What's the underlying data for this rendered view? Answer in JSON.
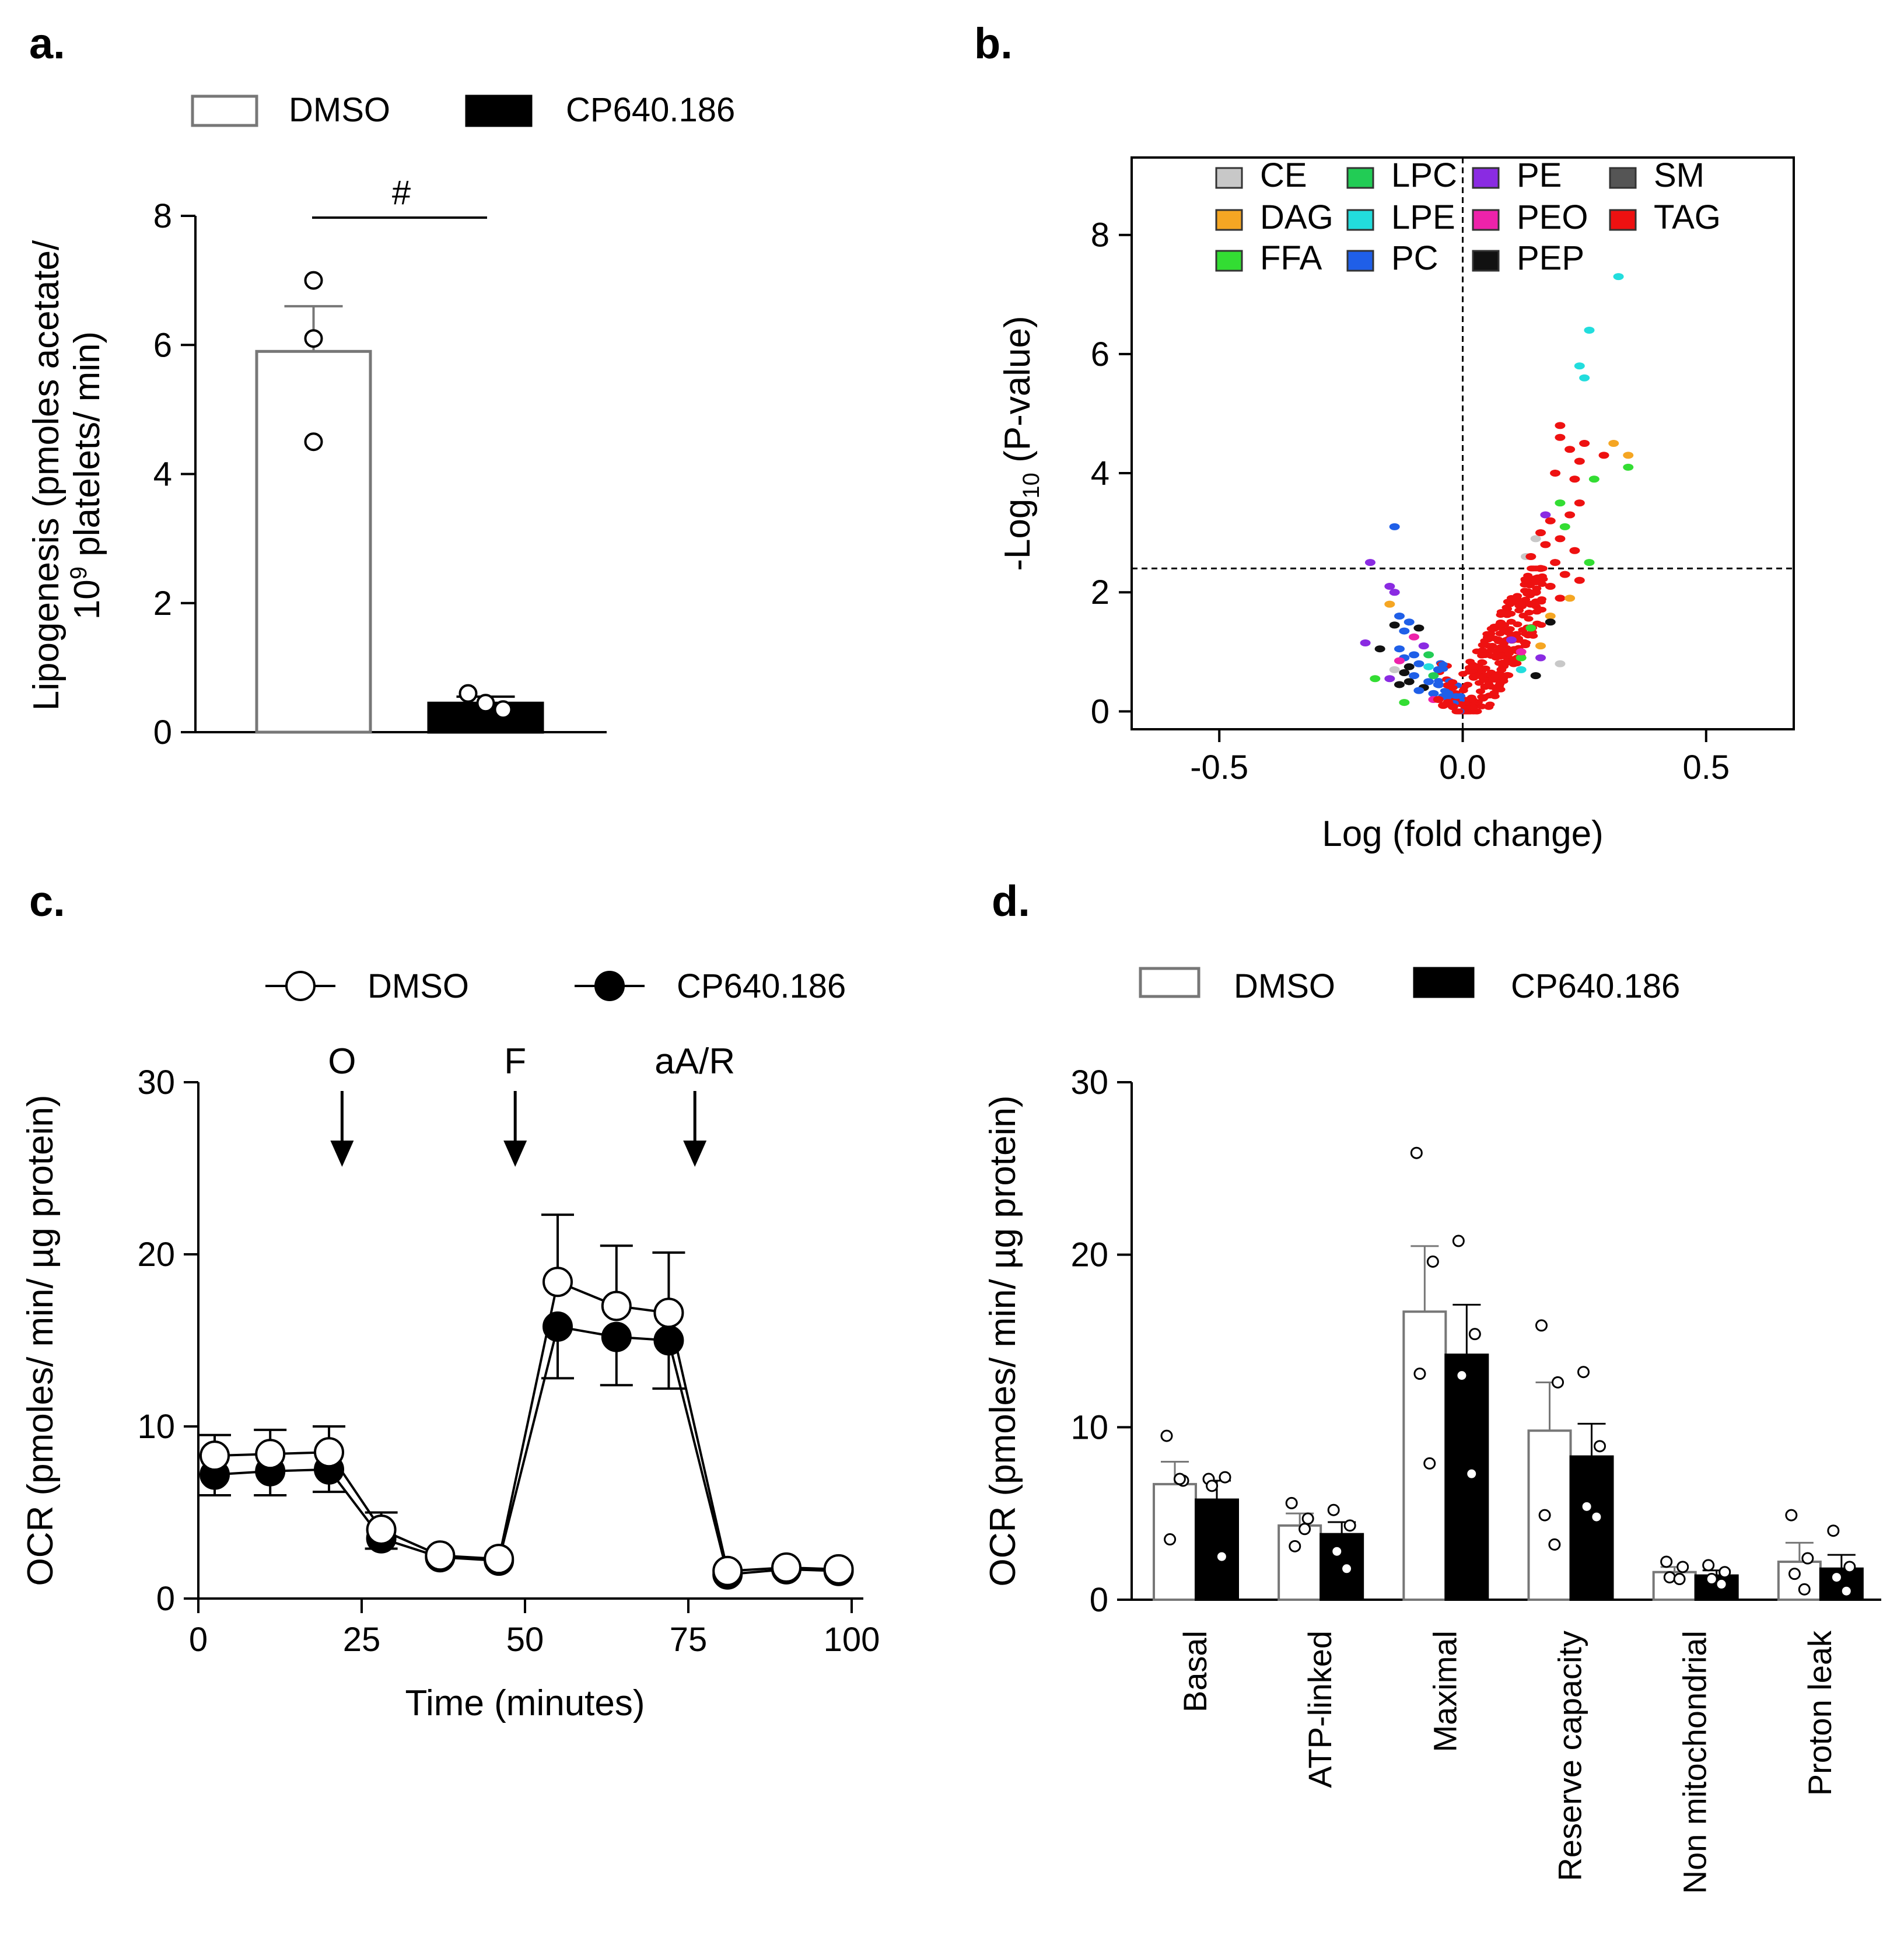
{
  "panels": {
    "a": {
      "label": "a.",
      "significance": "#"
    },
    "b": {
      "label": "b."
    },
    "c": {
      "label": "c.",
      "arrow_labels": [
        "O",
        "F",
        "aA/R"
      ],
      "arrow_x": [
        22,
        48.5,
        76
      ]
    },
    "d": {
      "label": "d."
    }
  },
  "colors": {
    "DMSO_fill": "#ffffff",
    "CP_fill": "#000000",
    "CE": "#c8c8c8",
    "DAG": "#f5a623",
    "FFA": "#33dd33",
    "LPC": "#22cc55",
    "LPE": "#22dddd",
    "PC": "#1f5fe8",
    "PE": "#8a2be2",
    "PEO": "#ee22aa",
    "PEP": "#111111",
    "SM": "#555555",
    "TAG": "#ee1111"
  },
  "chart_data": [
    {
      "type": "bar",
      "panel": "a",
      "ylabel_line1": "Lipogenesis (pmoles acetate/",
      "ylabel_line2_prefix": "10",
      "ylabel_line2_sup": "9",
      "ylabel_line2_suffix": " platelets/ min)",
      "ylim": [
        0,
        8
      ],
      "yticks": [
        "0",
        "2",
        "4",
        "6",
        "8"
      ],
      "series": [
        {
          "name": "DMSO",
          "value": 5.9,
          "sem": 0.7,
          "points": [
            7.0,
            6.1,
            4.5
          ]
        },
        {
          "name": "CP640.186",
          "value": 0.45,
          "sem": 0.1,
          "points": [
            0.6,
            0.45,
            0.35
          ]
        }
      ],
      "legend": [
        "DMSO",
        "CP640.186"
      ],
      "significance": "#"
    },
    {
      "type": "scatter",
      "panel": "b",
      "xlabel": "Log (fold change)",
      "ylabel_prefix": "-Log",
      "ylabel_sub": "10",
      "ylabel_suffix": " (P-value)",
      "xlim": [
        -0.68,
        0.68
      ],
      "ylim": [
        -0.3,
        9.3
      ],
      "xticks": [
        "-0.5",
        "0.0",
        "0.5"
      ],
      "yticks": [
        "0",
        "2",
        "4",
        "6",
        "8"
      ],
      "threshold_y": 2.4,
      "legend": [
        "CE",
        "LPC",
        "PE",
        "SM",
        "DAG",
        "LPE",
        "PEO",
        "TAG",
        "FFA",
        "PC",
        "PEP"
      ],
      "points": [
        {
          "class": "LPE",
          "x": 0.32,
          "y": 7.3
        },
        {
          "class": "LPE",
          "x": 0.26,
          "y": 6.4
        },
        {
          "class": "LPE",
          "x": 0.24,
          "y": 5.8
        },
        {
          "class": "LPE",
          "x": 0.25,
          "y": 5.6
        },
        {
          "class": "TAG",
          "x": 0.2,
          "y": 4.8
        },
        {
          "class": "TAG",
          "x": 0.2,
          "y": 4.6
        },
        {
          "class": "TAG",
          "x": 0.22,
          "y": 4.4
        },
        {
          "class": "TAG",
          "x": 0.25,
          "y": 4.5
        },
        {
          "class": "TAG",
          "x": 0.29,
          "y": 4.3
        },
        {
          "class": "TAG",
          "x": 0.24,
          "y": 4.2
        },
        {
          "class": "TAG",
          "x": 0.19,
          "y": 4.0
        },
        {
          "class": "TAG",
          "x": 0.23,
          "y": 3.9
        },
        {
          "class": "DAG",
          "x": 0.31,
          "y": 4.5
        },
        {
          "class": "DAG",
          "x": 0.34,
          "y": 4.3
        },
        {
          "class": "FFA",
          "x": 0.34,
          "y": 4.1
        },
        {
          "class": "FFA",
          "x": 0.27,
          "y": 3.9
        },
        {
          "class": "FFA",
          "x": 0.2,
          "y": 3.5
        },
        {
          "class": "FFA",
          "x": 0.21,
          "y": 3.1
        },
        {
          "class": "FFA",
          "x": 0.26,
          "y": 2.5
        },
        {
          "class": "CE",
          "x": 0.15,
          "y": 2.9
        },
        {
          "class": "CE",
          "x": 0.13,
          "y": 2.6
        },
        {
          "class": "PE",
          "x": 0.17,
          "y": 3.3
        },
        {
          "class": "TAG",
          "x": 0.24,
          "y": 3.5
        },
        {
          "class": "TAG",
          "x": 0.22,
          "y": 3.3
        },
        {
          "class": "TAG",
          "x": 0.18,
          "y": 3.2
        },
        {
          "class": "TAG",
          "x": 0.16,
          "y": 3.0
        },
        {
          "class": "TAG",
          "x": 0.2,
          "y": 2.9
        },
        {
          "class": "TAG",
          "x": 0.17,
          "y": 2.8
        },
        {
          "class": "TAG",
          "x": 0.23,
          "y": 2.7
        },
        {
          "class": "TAG",
          "x": 0.14,
          "y": 2.6
        },
        {
          "class": "TAG",
          "x": 0.19,
          "y": 2.5
        },
        {
          "class": "TAG",
          "x": 0.16,
          "y": 2.4
        },
        {
          "class": "TAG",
          "x": 0.21,
          "y": 2.3
        },
        {
          "class": "TAG",
          "x": 0.13,
          "y": 2.2
        },
        {
          "class": "TAG",
          "x": 0.18,
          "y": 2.1
        },
        {
          "class": "TAG",
          "x": 0.24,
          "y": 2.2
        },
        {
          "class": "TAG",
          "x": 0.15,
          "y": 2.0
        },
        {
          "class": "TAG",
          "x": 0.2,
          "y": 1.9
        },
        {
          "class": "TAG",
          "x": 0.11,
          "y": 1.9
        },
        {
          "class": "TAG",
          "x": 0.14,
          "y": 1.8
        },
        {
          "class": "DAG",
          "x": 0.22,
          "y": 1.9
        },
        {
          "class": "DAG",
          "x": 0.18,
          "y": 1.6
        },
        {
          "class": "DAG",
          "x": 0.16,
          "y": 1.1
        },
        {
          "class": "FFA",
          "x": 0.14,
          "y": 1.4
        },
        {
          "class": "FFA",
          "x": 0.12,
          "y": 0.9
        },
        {
          "class": "PEP",
          "x": 0.18,
          "y": 1.5
        },
        {
          "class": "PEP",
          "x": 0.15,
          "y": 0.6
        },
        {
          "class": "PE",
          "x": 0.1,
          "y": 1.2
        },
        {
          "class": "PE",
          "x": 0.16,
          "y": 0.9
        },
        {
          "class": "PEO",
          "x": 0.12,
          "y": 1.0
        },
        {
          "class": "CE",
          "x": 0.2,
          "y": 0.8
        },
        {
          "class": "LPE",
          "x": 0.12,
          "y": 0.7
        },
        {
          "class": "PC",
          "x": -0.14,
          "y": 3.1
        },
        {
          "class": "PE",
          "x": -0.19,
          "y": 2.5
        },
        {
          "class": "PE",
          "x": -0.15,
          "y": 2.1
        },
        {
          "class": "PE",
          "x": -0.14,
          "y": 2.0
        },
        {
          "class": "DAG",
          "x": -0.15,
          "y": 1.8
        },
        {
          "class": "PC",
          "x": -0.13,
          "y": 1.6
        },
        {
          "class": "PC",
          "x": -0.11,
          "y": 1.5
        },
        {
          "class": "PEP",
          "x": -0.14,
          "y": 1.45
        },
        {
          "class": "PC",
          "x": -0.12,
          "y": 1.35
        },
        {
          "class": "PEP",
          "x": -0.09,
          "y": 1.4
        },
        {
          "class": "PEO",
          "x": -0.1,
          "y": 1.25
        },
        {
          "class": "PE",
          "x": -0.2,
          "y": 1.15
        },
        {
          "class": "PEP",
          "x": -0.17,
          "y": 1.05
        },
        {
          "class": "PC",
          "x": -0.13,
          "y": 1.05
        },
        {
          "class": "PC",
          "x": -0.1,
          "y": 0.95
        },
        {
          "class": "PC",
          "x": -0.12,
          "y": 0.9
        },
        {
          "class": "PE",
          "x": -0.08,
          "y": 1.1
        },
        {
          "class": "LPC",
          "x": -0.07,
          "y": 0.95
        },
        {
          "class": "PEO",
          "x": -0.13,
          "y": 0.85
        },
        {
          "class": "PC",
          "x": -0.09,
          "y": 0.8
        },
        {
          "class": "PEP",
          "x": -0.11,
          "y": 0.75
        },
        {
          "class": "LPE",
          "x": -0.07,
          "y": 0.75
        },
        {
          "class": "PC",
          "x": -0.05,
          "y": 0.7
        },
        {
          "class": "PEP",
          "x": -0.12,
          "y": 0.65
        },
        {
          "class": "PC",
          "x": -0.1,
          "y": 0.6
        },
        {
          "class": "CE",
          "x": -0.14,
          "y": 0.7
        },
        {
          "class": "PE",
          "x": -0.15,
          "y": 0.55
        },
        {
          "class": "FFA",
          "x": -0.18,
          "y": 0.55
        },
        {
          "class": "PEP",
          "x": -0.11,
          "y": 0.5
        },
        {
          "class": "PEP",
          "x": -0.13,
          "y": 0.45
        },
        {
          "class": "PEP",
          "x": -0.08,
          "y": 0.4
        },
        {
          "class": "PC",
          "x": -0.07,
          "y": 0.5
        },
        {
          "class": "PC",
          "x": -0.05,
          "y": 0.45
        },
        {
          "class": "PC",
          "x": -0.09,
          "y": 0.35
        },
        {
          "class": "PC",
          "x": -0.06,
          "y": 0.3
        },
        {
          "class": "PC",
          "x": -0.04,
          "y": 0.25
        },
        {
          "class": "LPC",
          "x": -0.06,
          "y": 0.6
        },
        {
          "class": "FFA",
          "x": -0.12,
          "y": 0.15
        },
        {
          "class": "PEO",
          "x": -0.06,
          "y": 0.2
        },
        {
          "class": "TAG",
          "x": -0.05,
          "y": 0.2
        },
        {
          "class": "TAG",
          "x": -0.03,
          "y": 0.15
        },
        {
          "class": "TAG",
          "x": -0.02,
          "y": 0.08
        },
        {
          "class": "TAG",
          "x": -0.04,
          "y": 0.1
        },
        {
          "class": "PC",
          "x": -0.03,
          "y": 0.3
        }
      ]
    },
    {
      "type": "line",
      "panel": "c",
      "xlabel": "Time  (minutes)",
      "ylabel": "OCR  (pmoles/ min/ µg protein)",
      "xlim": [
        0,
        100
      ],
      "ylim": [
        0,
        30
      ],
      "xticks": [
        "0",
        "25",
        "50",
        "75",
        "100"
      ],
      "yticks": [
        "0",
        "10",
        "20",
        "30"
      ],
      "x": [
        2.5,
        11,
        20,
        28,
        37,
        46,
        55,
        64,
        72,
        81,
        90,
        98
      ],
      "series": [
        {
          "name": "DMSO",
          "values": [
            8.3,
            8.4,
            8.5,
            4.0,
            2.5,
            2.3,
            18.4,
            17.0,
            16.6,
            1.6,
            1.8,
            1.7
          ],
          "err": [
            1.2,
            1.4,
            1.5,
            1.0,
            0,
            0,
            3.9,
            3.5,
            3.5,
            0,
            0,
            0
          ]
        },
        {
          "name": "CP640.186",
          "values": [
            7.2,
            7.4,
            7.5,
            3.5,
            2.4,
            2.2,
            15.8,
            15.2,
            15.0,
            1.4,
            1.7,
            1.6
          ],
          "err": [
            1.2,
            1.4,
            1.3,
            0.6,
            0,
            0,
            3.0,
            2.8,
            2.8,
            0,
            0,
            0
          ]
        }
      ],
      "legend": [
        "DMSO",
        "CP640.186"
      ]
    },
    {
      "type": "bar",
      "panel": "d",
      "ylabel": "OCR  (pmoles/ min/ µg protein)",
      "ylim": [
        0,
        30
      ],
      "yticks": [
        "0",
        "10",
        "20",
        "30"
      ],
      "categories": [
        "Basal",
        "ATP-linked",
        "Maximal",
        "Reserve capacity",
        "Non mitochondrial",
        "Proton leak"
      ],
      "series": [
        {
          "name": "DMSO",
          "values": [
            6.7,
            4.3,
            16.7,
            9.8,
            1.6,
            2.2
          ],
          "sem": [
            1.3,
            0.7,
            3.8,
            2.8,
            0.3,
            1.1
          ],
          "points": [
            [
              9.5,
              6.9,
              3.5,
              7.0
            ],
            [
              5.6,
              4.7,
              3.1,
              4.1
            ],
            [
              25.9,
              19.6,
              13.1,
              7.9
            ],
            [
              15.9,
              12.6,
              4.9,
              3.2
            ],
            [
              2.2,
              1.9,
              1.3,
              1.2
            ],
            [
              4.9,
              2.4,
              1.5,
              0.6
            ]
          ]
        },
        {
          "name": "CP640.186",
          "values": [
            5.8,
            3.8,
            14.2,
            8.3,
            1.4,
            1.8
          ],
          "sem": [
            1.1,
            0.7,
            2.9,
            1.9,
            0.3,
            0.8
          ],
          "points": [
            [
              7.0,
              7.1,
              6.6,
              2.5
            ],
            [
              5.2,
              4.3,
              2.8,
              1.8
            ],
            [
              20.8,
              15.4,
              13.0,
              7.3
            ],
            [
              13.2,
              8.9,
              5.4,
              4.8
            ],
            [
              2.0,
              1.6,
              1.2,
              0.9
            ],
            [
              4.0,
              1.9,
              1.3,
              0.5
            ]
          ]
        }
      ],
      "legend": [
        "DMSO",
        "CP640.186"
      ]
    }
  ]
}
